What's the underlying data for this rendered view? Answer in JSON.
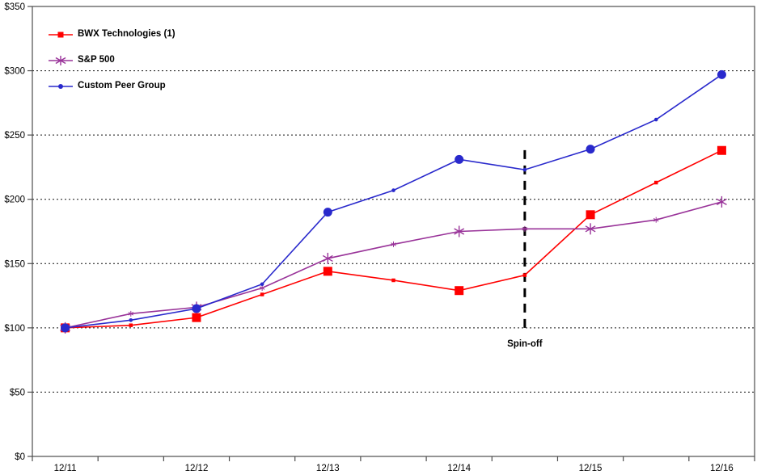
{
  "chart_data": {
    "type": "line",
    "title": "",
    "x_categories": [
      "12/11",
      "6/12",
      "12/12",
      "6/13",
      "12/13",
      "6/14",
      "12/14",
      "6/15",
      "12/15",
      "6/16",
      "12/16"
    ],
    "x_axis_labels": [
      "12/11",
      "12/12",
      "12/13",
      "12/14",
      "12/15",
      "12/16"
    ],
    "x_axis_label_indices": [
      0,
      2,
      4,
      6,
      8,
      10
    ],
    "y_ticks": [
      "$0",
      "$50",
      "$100",
      "$150",
      "$200",
      "$250",
      "$300",
      "$350"
    ],
    "y_tick_values": [
      0,
      50,
      100,
      150,
      200,
      250,
      300,
      350
    ],
    "ylim": [
      0,
      350
    ],
    "grid": "horizontal-dotted",
    "legend_position": "top-left-inside",
    "series": [
      {
        "name": "BWX Technologies (1)",
        "color": "#FF0000",
        "marker": "square",
        "values": [
          100,
          102,
          108,
          126,
          144,
          137,
          129,
          141,
          188,
          213,
          238
        ]
      },
      {
        "name": "S&P 500",
        "color": "#993399",
        "marker": "asterisk",
        "values": [
          100,
          111,
          116,
          131,
          154,
          165,
          175,
          177,
          177,
          184,
          198
        ]
      },
      {
        "name": "Custom Peer Group",
        "color": "#2929CC",
        "marker": "circle",
        "values": [
          100,
          106,
          115,
          134,
          190,
          207,
          231,
          223,
          239,
          262,
          297
        ]
      }
    ],
    "major_marker_indices": [
      0,
      2,
      4,
      6,
      8,
      10
    ],
    "annotation": {
      "label": "Spin-off",
      "x_category": "6/15",
      "x_index": 7,
      "line_from_value": 100,
      "line_to_value": 242,
      "label_value": 88
    }
  }
}
